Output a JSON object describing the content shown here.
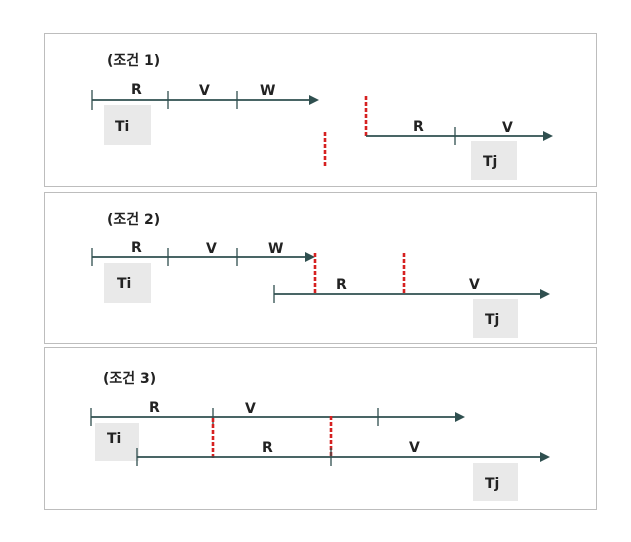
{
  "conditions": [
    {
      "title": "(조건 1)",
      "ti": {
        "label": "Ti",
        "phases": [
          "R",
          "V",
          "W"
        ]
      },
      "tj": {
        "label": "Tj",
        "phases": [
          "R",
          "V"
        ]
      }
    },
    {
      "title": "(조건 2)",
      "ti": {
        "label": "Ti",
        "phases": [
          "R",
          "V",
          "W"
        ]
      },
      "tj": {
        "label": "Tj",
        "phases": [
          "R",
          "V"
        ]
      }
    },
    {
      "title": "(조건 3)",
      "ti": {
        "label": "Ti",
        "phases": [
          "R",
          "V"
        ]
      },
      "tj": {
        "label": "Tj",
        "phases": [
          "R",
          "V"
        ]
      }
    }
  ],
  "colors": {
    "axis": "#2f4f4f",
    "marker": "#d62020",
    "box": "#e9e9e9"
  }
}
